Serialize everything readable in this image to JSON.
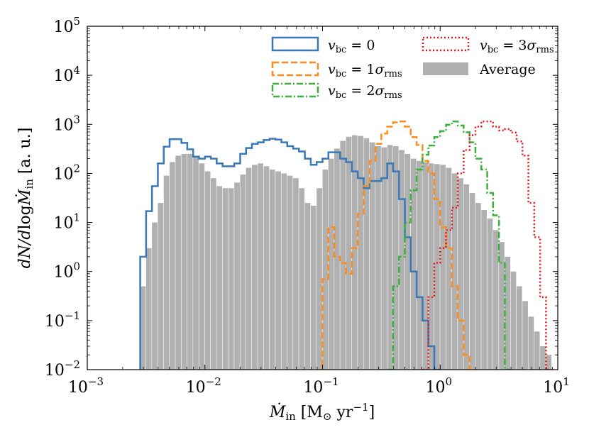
{
  "chart_data": {
    "type": "histogram",
    "xscale": "log",
    "yscale": "log",
    "xlim": [
      0.001,
      10
    ],
    "ylim": [
      0.01,
      100000
    ],
    "xlabel": "Ṁin [M⊙ yr⁻¹]",
    "ylabel": "dN/dlogṀin [a. u.]",
    "x_ticks": [
      {
        "base": "10",
        "exp": "-3",
        "value": 0.001
      },
      {
        "base": "10",
        "exp": "-2",
        "value": 0.01
      },
      {
        "base": "10",
        "exp": "-1",
        "value": 0.1
      },
      {
        "base": "10",
        "exp": "0",
        "value": 1
      },
      {
        "base": "10",
        "exp": "1",
        "value": 10
      }
    ],
    "y_ticks": [
      {
        "base": "10",
        "exp": "-2",
        "value": 0.01
      },
      {
        "base": "10",
        "exp": "-1",
        "value": 0.1
      },
      {
        "base": "10",
        "exp": "0",
        "value": 1
      },
      {
        "base": "10",
        "exp": "1",
        "value": 10
      },
      {
        "base": "10",
        "exp": "2",
        "value": 100
      },
      {
        "base": "10",
        "exp": "3",
        "value": 1000
      },
      {
        "base": "10",
        "exp": "4",
        "value": 10000
      },
      {
        "base": "10",
        "exp": "5",
        "value": 100000
      }
    ],
    "bins": {
      "log_start": -2.55,
      "log_width": 0.05,
      "count": 70
    },
    "legend": {
      "placement": "top-right",
      "entries": [
        {
          "key": "v0",
          "label": "vbc = 0"
        },
        {
          "key": "v1",
          "label": "vbc = 1σrms"
        },
        {
          "key": "v2",
          "label": "vbc = 2σrms"
        },
        {
          "key": "v3",
          "label": "vbc = 3σrms"
        },
        {
          "key": "avg",
          "label": "Average"
        }
      ]
    },
    "series": [
      {
        "key": "avg",
        "name": "Average",
        "style": "filled",
        "color": "#b0b0b0",
        "values": [
          0.5,
          3,
          10,
          25,
          90,
          170,
          230,
          250,
          250,
          220,
          160,
          110,
          80,
          55,
          50,
          50,
          65,
          95,
          130,
          150,
          160,
          140,
          120,
          110,
          100,
          90,
          80,
          50,
          25,
          22,
          50,
          120,
          200,
          320,
          460,
          560,
          600,
          580,
          520,
          430,
          360,
          340,
          380,
          360,
          300,
          250,
          200,
          180,
          170,
          160,
          155,
          150,
          130,
          100,
          80,
          60,
          40,
          25,
          18,
          12,
          7,
          4,
          2,
          1,
          0.5,
          0.25,
          0.12,
          0.06,
          0.03,
          0.02
        ]
      },
      {
        "key": "v0",
        "name": "vbc = 0",
        "style": "solid",
        "color": "#3a78b8",
        "values": [
          2,
          17,
          55,
          160,
          350,
          500,
          500,
          420,
          310,
          220,
          200,
          220,
          200,
          160,
          140,
          140,
          160,
          250,
          330,
          400,
          430,
          480,
          510,
          490,
          430,
          360,
          320,
          280,
          200,
          150,
          170,
          200,
          270,
          270,
          200,
          170,
          110,
          80,
          50,
          70,
          70,
          80,
          160,
          110,
          30,
          5,
          1,
          0.3,
          0.1,
          0.03,
          0.01,
          null,
          null,
          null,
          null,
          null,
          null,
          null,
          null,
          null,
          null,
          null,
          null,
          null,
          null,
          null,
          null,
          null,
          null,
          null
        ]
      },
      {
        "key": "v1",
        "name": "vbc = 1σrms",
        "style": "dashed",
        "color": "#ff8c1a",
        "values": [
          null,
          null,
          null,
          null,
          null,
          null,
          null,
          null,
          null,
          null,
          null,
          null,
          null,
          null,
          null,
          null,
          null,
          null,
          null,
          null,
          null,
          null,
          null,
          null,
          null,
          null,
          null,
          null,
          null,
          null,
          0.01,
          0.7,
          8,
          2,
          1.5,
          0.9,
          3,
          15,
          55,
          180,
          400,
          650,
          900,
          1100,
          1150,
          900,
          550,
          380,
          180,
          100,
          30,
          8,
          3,
          0.5,
          0.1,
          0.02,
          0.01,
          null,
          null,
          null,
          null,
          null,
          null,
          null,
          null,
          null,
          null,
          null,
          null,
          null
        ]
      },
      {
        "key": "v2",
        "name": "vbc = 2σrms",
        "style": "dashdot",
        "color": "#3cb03c",
        "values": [
          null,
          null,
          null,
          null,
          null,
          null,
          null,
          null,
          null,
          null,
          null,
          null,
          null,
          null,
          null,
          null,
          null,
          null,
          null,
          null,
          null,
          null,
          null,
          null,
          null,
          null,
          null,
          null,
          null,
          null,
          null,
          null,
          null,
          null,
          null,
          null,
          null,
          null,
          null,
          null,
          null,
          null,
          0.01,
          0.5,
          2,
          10,
          45,
          120,
          240,
          370,
          550,
          730,
          980,
          1150,
          950,
          690,
          430,
          200,
          120,
          40,
          14,
          1.5,
          0.01,
          null,
          null,
          null,
          null,
          null,
          null,
          null
        ]
      },
      {
        "key": "v3",
        "name": "vbc = 3σrms",
        "style": "dotted",
        "color": "#e8161c",
        "values": [
          null,
          null,
          null,
          null,
          null,
          null,
          null,
          null,
          null,
          null,
          null,
          null,
          null,
          null,
          null,
          null,
          null,
          null,
          null,
          null,
          null,
          null,
          null,
          null,
          null,
          null,
          null,
          null,
          null,
          null,
          null,
          null,
          null,
          null,
          null,
          null,
          null,
          null,
          null,
          null,
          null,
          null,
          null,
          null,
          null,
          null,
          null,
          null,
          0.01,
          0.3,
          1.5,
          3,
          7,
          20,
          100,
          300,
          600,
          900,
          1150,
          1150,
          900,
          750,
          800,
          680,
          450,
          230,
          25,
          5,
          0.3,
          0.01
        ]
      }
    ]
  }
}
